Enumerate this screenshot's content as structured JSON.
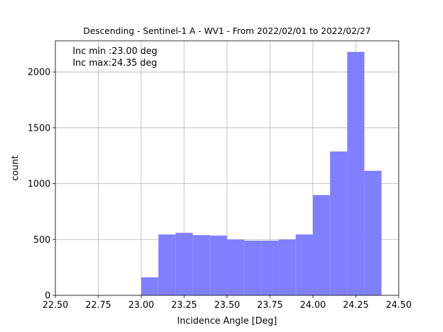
{
  "chart_data": {
    "type": "histogram",
    "title": "Descending - Sentinel-1 A - WV1 - From 2022/02/01 to 2022/02/27",
    "x_label": "Incidence Angle [Deg]",
    "y_label": "count",
    "annotations": [
      "Inc min :23.00 deg",
      "Inc max:24.35 deg"
    ],
    "bins": [
      23.0,
      23.1,
      23.2,
      23.3,
      23.4,
      23.5,
      23.6,
      23.7,
      23.8,
      23.9,
      24.0,
      24.1,
      24.2,
      24.3,
      24.4
    ],
    "counts": [
      161,
      545,
      560,
      540,
      535,
      500,
      490,
      490,
      500,
      545,
      898,
      1288,
      2180,
      1115
    ],
    "color": "#8080ff",
    "xlim": [
      22.5,
      24.5
    ],
    "xticks": [
      {
        "value": 22.5,
        "label": "22.50"
      },
      {
        "value": 22.75,
        "label": "22.75"
      },
      {
        "value": 23.0,
        "label": "23.00"
      },
      {
        "value": 23.25,
        "label": "23.25"
      },
      {
        "value": 23.5,
        "label": "23.50"
      },
      {
        "value": 23.75,
        "label": "23.75"
      },
      {
        "value": 24.0,
        "label": "24.00"
      },
      {
        "value": 24.25,
        "label": "24.25"
      },
      {
        "value": 24.5,
        "label": "24.50"
      }
    ],
    "ylim": [
      0,
      2279
    ],
    "yticks": [
      0,
      500,
      1000,
      1500,
      2000
    ],
    "grid": true
  }
}
